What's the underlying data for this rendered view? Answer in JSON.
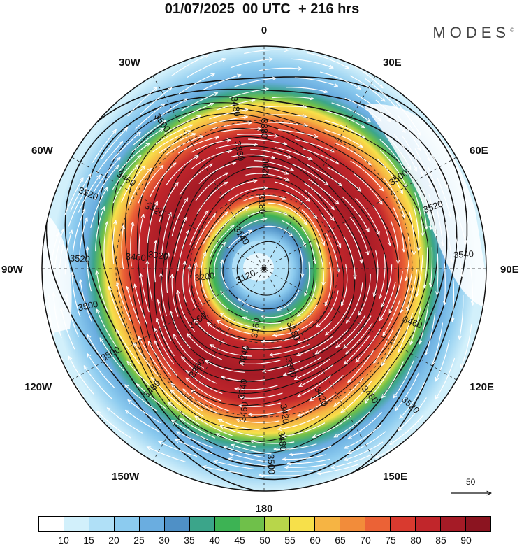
{
  "title": "01/07/2025  00 UTC  + 216 hrs",
  "brand": "MODES",
  "brand_mark": "©",
  "longitude_labels": {
    "lon_0": "0",
    "lon_30e": "30E",
    "lon_60e": "60E",
    "lon_90e": "90E",
    "lon_120e": "120E",
    "lon_150e": "150E",
    "lon_180": "180",
    "lon_150w": "150W",
    "lon_120w": "120W",
    "lon_90w": "90W",
    "lon_60w": "60W",
    "lon_30w": "30W"
  },
  "contour_labels": [
    {
      "text": "3480",
      "angle_deg": 350,
      "radius_frac": 0.74
    },
    {
      "text": "3500",
      "angle_deg": 325,
      "radius_frac": 0.8
    },
    {
      "text": "3460",
      "angle_deg": 303,
      "radius_frac": 0.74
    },
    {
      "text": "3520",
      "angle_deg": 293,
      "radius_frac": 0.86
    },
    {
      "text": "3520",
      "angle_deg": 273,
      "radius_frac": 0.83
    },
    {
      "text": "3500",
      "angle_deg": 258,
      "radius_frac": 0.81
    },
    {
      "text": "3500",
      "angle_deg": 241,
      "radius_frac": 0.79
    },
    {
      "text": "3480",
      "angle_deg": 223,
      "radius_frac": 0.74
    },
    {
      "text": "3460",
      "angle_deg": 188,
      "radius_frac": 0.65
    },
    {
      "text": "3500",
      "angle_deg": 178,
      "radius_frac": 0.88
    },
    {
      "text": "3480",
      "angle_deg": 174,
      "radius_frac": 0.78
    },
    {
      "text": "3420",
      "angle_deg": 172,
      "radius_frac": 0.66
    },
    {
      "text": "3420",
      "angle_deg": 156,
      "radius_frac": 0.63
    },
    {
      "text": "3480",
      "angle_deg": 140,
      "radius_frac": 0.74
    },
    {
      "text": "3520",
      "angle_deg": 133,
      "radius_frac": 0.9
    },
    {
      "text": "3460",
      "angle_deg": 110,
      "radius_frac": 0.71
    },
    {
      "text": "3540",
      "angle_deg": 86,
      "radius_frac": 0.9
    },
    {
      "text": "3520",
      "angle_deg": 70,
      "radius_frac": 0.81
    },
    {
      "text": "3500",
      "angle_deg": 56,
      "radius_frac": 0.73
    },
    {
      "text": "3380",
      "angle_deg": 0,
      "radius_frac": 0.63
    },
    {
      "text": "3360",
      "angle_deg": 348,
      "radius_frac": 0.54
    },
    {
      "text": "3280",
      "angle_deg": 1,
      "radius_frac": 0.45
    },
    {
      "text": "3180",
      "angle_deg": 358,
      "radius_frac": 0.29
    },
    {
      "text": "3140",
      "angle_deg": 325,
      "radius_frac": 0.18
    },
    {
      "text": "3120",
      "angle_deg": 246,
      "radius_frac": 0.09
    },
    {
      "text": "3200",
      "angle_deg": 262,
      "radius_frac": 0.27
    },
    {
      "text": "3260",
      "angle_deg": 232,
      "radius_frac": 0.38
    },
    {
      "text": "3160",
      "angle_deg": 188,
      "radius_frac": 0.27
    },
    {
      "text": "3180",
      "angle_deg": 155,
      "radius_frac": 0.31
    },
    {
      "text": "3240",
      "angle_deg": 193,
      "radius_frac": 0.4
    },
    {
      "text": "3300",
      "angle_deg": 165,
      "radius_frac": 0.46
    },
    {
      "text": "3360",
      "angle_deg": 214,
      "radius_frac": 0.54
    },
    {
      "text": "3340",
      "angle_deg": 190,
      "radius_frac": 0.55
    },
    {
      "text": "3420",
      "angle_deg": 298,
      "radius_frac": 0.56
    },
    {
      "text": "3320",
      "angle_deg": 277,
      "radius_frac": 0.48
    },
    {
      "text": "3400",
      "angle_deg": 275,
      "radius_frac": 0.58
    }
  ],
  "reference_vector": {
    "label": "50"
  },
  "colorbar": {
    "colors": [
      "#ffffff",
      "#d2f0fb",
      "#b0e0f7",
      "#8ccbef",
      "#6aade0",
      "#4f90c6",
      "#3ba58a",
      "#3db354",
      "#6fc04a",
      "#b8d64a",
      "#f7e04a",
      "#f6b443",
      "#f28c3a",
      "#eb6236",
      "#d93a2f",
      "#c1262b",
      "#a51b26",
      "#8b1420"
    ],
    "tick_labels": [
      "10",
      "15",
      "20",
      "25",
      "30",
      "35",
      "40",
      "45",
      "50",
      "55",
      "60",
      "65",
      "70",
      "75",
      "80",
      "85",
      "90"
    ]
  }
}
